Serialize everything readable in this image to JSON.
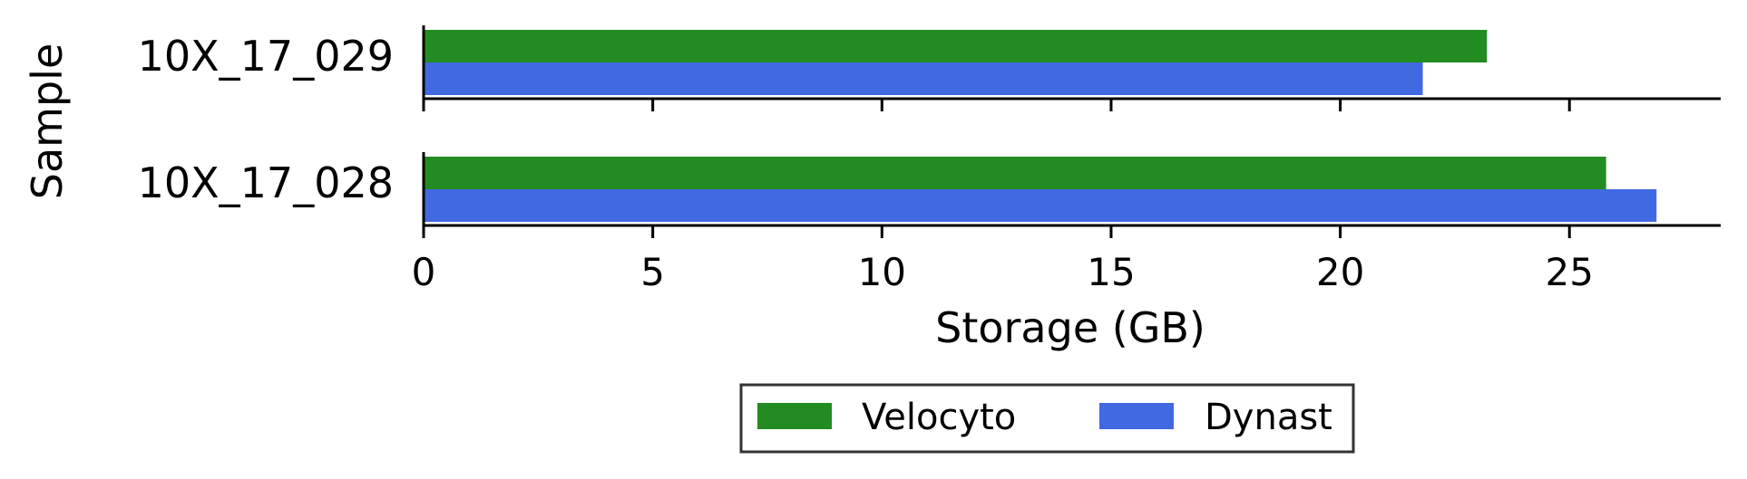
{
  "chart_data": {
    "type": "bar",
    "orientation": "horizontal",
    "categories": [
      "10X_17_029",
      "10X_17_028"
    ],
    "series": [
      {
        "name": "Velocyto",
        "color": "#228b22",
        "values": [
          23.2,
          25.8
        ]
      },
      {
        "name": "Dynast",
        "color": "#4169e1",
        "values": [
          21.8,
          26.9
        ]
      }
    ],
    "xlabel": "Storage (GB)",
    "ylabel": "Sample",
    "xlim": [
      0,
      28.3
    ],
    "xticks": [
      0,
      5,
      10,
      15,
      20,
      25
    ],
    "grid": false,
    "legend_position": "bottom-center"
  }
}
